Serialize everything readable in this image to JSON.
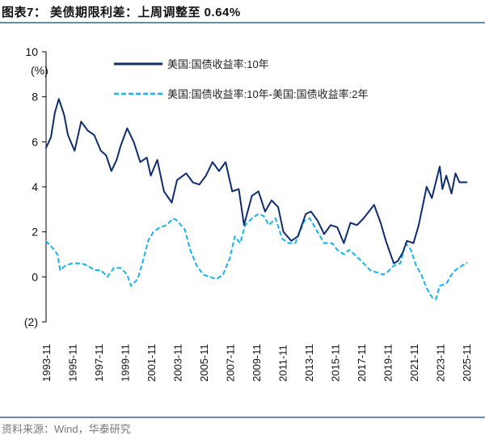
{
  "title": "图表7： 美债期限利差：上周调整至 0.64%",
  "source": "资料来源：Wind，华泰研究",
  "chart_data": {
    "type": "line",
    "title": "美债期限利差：上周调整至 0.64%",
    "ylabel": "(%)",
    "ylim": [
      -2,
      10
    ],
    "yticks": [
      10,
      8,
      6,
      4,
      2,
      0,
      -2
    ],
    "ytick_labels": [
      "10",
      "8",
      "6",
      "4",
      "2",
      "0",
      "(2)"
    ],
    "xlim": [
      1993.83,
      2025.95
    ],
    "xtick_labels": [
      "1993-11",
      "1995-11",
      "1997-11",
      "1999-11",
      "2001-11",
      "2003-11",
      "2005-11",
      "2007-11",
      "2009-11",
      "2011-11",
      "2013-11",
      "2015-11",
      "2017-11",
      "2019-11",
      "2021-11",
      "2023-11",
      "2025-11"
    ],
    "grid": false,
    "legend_position": "top",
    "series": [
      {
        "name": "美国:国债收益率:10年",
        "color": "#0d2d6c",
        "style": "solid",
        "x": [
          1993.8,
          1994.2,
          1994.5,
          1994.8,
          1995.2,
          1995.5,
          1996.0,
          1996.5,
          1997.0,
          1997.5,
          1998.0,
          1998.4,
          1998.8,
          1999.2,
          1999.5,
          2000.0,
          2000.5,
          2001.0,
          2001.5,
          2001.8,
          2002.3,
          2002.8,
          2003.4,
          2003.8,
          2004.5,
          2005.0,
          2005.5,
          2006.0,
          2006.5,
          2007.0,
          2007.5,
          2008.0,
          2008.5,
          2008.9,
          2009.5,
          2010.0,
          2010.5,
          2011.0,
          2011.5,
          2011.9,
          2012.5,
          2013.0,
          2013.6,
          2014.0,
          2014.5,
          2015.0,
          2015.5,
          2016.0,
          2016.5,
          2017.0,
          2017.5,
          2018.0,
          2018.8,
          2019.3,
          2019.7,
          2020.3,
          2020.6,
          2021.0,
          2021.3,
          2021.8,
          2022.2,
          2022.8,
          2023.2,
          2023.8,
          2024.0,
          2024.3,
          2024.7,
          2025.0,
          2025.3,
          2025.9
        ],
        "y": [
          5.7,
          6.2,
          7.3,
          7.9,
          7.2,
          6.3,
          5.6,
          6.9,
          6.5,
          6.3,
          5.6,
          5.4,
          4.7,
          5.2,
          5.8,
          6.6,
          6.0,
          5.1,
          5.3,
          4.5,
          5.2,
          3.8,
          3.3,
          4.3,
          4.6,
          4.2,
          4.1,
          4.5,
          5.1,
          4.7,
          5.1,
          3.8,
          3.9,
          2.3,
          3.6,
          3.8,
          2.9,
          3.4,
          3.1,
          2.0,
          1.6,
          1.8,
          2.8,
          2.9,
          2.5,
          1.9,
          2.3,
          2.2,
          1.5,
          2.4,
          2.3,
          2.6,
          3.2,
          2.4,
          1.6,
          0.6,
          0.7,
          1.1,
          1.6,
          1.5,
          2.3,
          4.0,
          3.5,
          4.9,
          3.9,
          4.5,
          3.7,
          4.6,
          4.2,
          4.2
        ]
      },
      {
        "name": "美国:国债收益率:10年-美国:国债收益率:2年",
        "color": "#16b3ec",
        "style": "dashed",
        "x": [
          1993.8,
          1994.3,
          1994.7,
          1994.9,
          1995.3,
          1995.8,
          1996.5,
          1997.0,
          1997.5,
          1998.0,
          1998.5,
          1999.0,
          1999.5,
          2000.0,
          2000.3,
          2000.8,
          2001.2,
          2001.6,
          2002.0,
          2002.5,
          2003.0,
          2003.5,
          2003.8,
          2004.4,
          2004.8,
          2005.3,
          2005.8,
          2006.3,
          2006.8,
          2007.3,
          2007.8,
          2008.2,
          2008.6,
          2009.0,
          2009.5,
          2010.0,
          2010.4,
          2010.8,
          2011.3,
          2011.8,
          2012.3,
          2012.8,
          2013.5,
          2013.9,
          2014.5,
          2015.0,
          2015.6,
          2016.0,
          2016.5,
          2016.9,
          2017.5,
          2018.0,
          2018.5,
          2019.0,
          2019.5,
          2019.8,
          2020.3,
          2020.8,
          2021.2,
          2021.6,
          2022.0,
          2022.4,
          2022.8,
          2023.2,
          2023.5,
          2023.8,
          2024.3,
          2024.7,
          2025.0,
          2025.5,
          2025.9
        ],
        "y": [
          1.6,
          1.3,
          1.0,
          0.3,
          0.5,
          0.6,
          0.6,
          0.5,
          0.3,
          0.3,
          0.0,
          0.4,
          0.4,
          0.1,
          -0.4,
          -0.1,
          0.7,
          1.6,
          2.0,
          2.2,
          2.3,
          2.6,
          2.5,
          2.1,
          1.2,
          0.5,
          0.1,
          0.0,
          -0.1,
          0.1,
          0.8,
          1.8,
          1.5,
          2.3,
          2.6,
          2.8,
          2.7,
          2.3,
          2.6,
          1.7,
          1.5,
          1.5,
          2.5,
          2.6,
          2.0,
          1.5,
          1.5,
          1.2,
          1.0,
          1.2,
          0.9,
          0.6,
          0.3,
          0.2,
          0.1,
          0.2,
          0.5,
          0.6,
          1.5,
          1.2,
          0.5,
          0.1,
          -0.5,
          -0.9,
          -1.0,
          -0.4,
          -0.3,
          0.1,
          0.3,
          0.5,
          0.64
        ]
      }
    ]
  }
}
